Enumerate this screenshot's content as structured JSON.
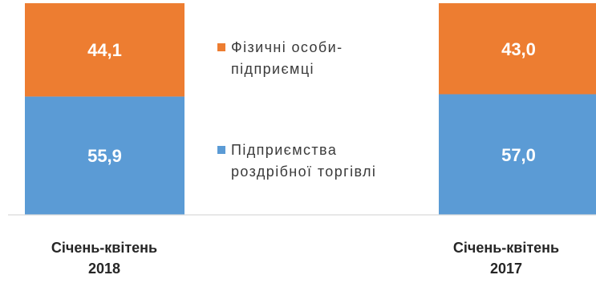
{
  "chart_data": {
    "type": "bar",
    "stacked": true,
    "categories": [
      "Січень-квітень\n2018",
      "Січень-квітень\n2017"
    ],
    "series": [
      {
        "name": "Підприємства\nроздрібної торгівлі",
        "values": [
          55.9,
          57.0
        ],
        "labels": [
          "55,9",
          "57,0"
        ],
        "color": "#5b9bd5"
      },
      {
        "name": "Фізичні особи-\nпідприємці",
        "values": [
          44.1,
          43.0
        ],
        "labels": [
          "44,1",
          "43,0"
        ],
        "color": "#ed7d31"
      }
    ],
    "ylim": [
      0,
      100
    ],
    "grid": false,
    "legend_position": "center"
  }
}
